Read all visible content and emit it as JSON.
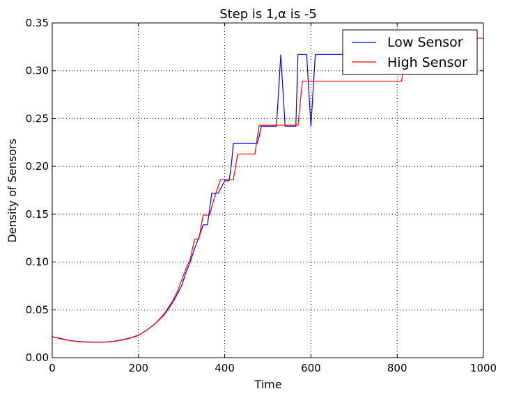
{
  "chart_data": {
    "type": "line",
    "title": "Step is 1,α is -5",
    "xlabel": "Time",
    "ylabel": "Density of Sensors",
    "xlim": [
      0,
      1000
    ],
    "ylim": [
      0,
      0.35
    ],
    "x_ticks": [
      0,
      200,
      400,
      600,
      800,
      1000
    ],
    "x_tick_labels": [
      "0",
      "200",
      "400",
      "600",
      "800",
      "1000"
    ],
    "y_ticks": [
      0,
      0.05,
      0.1,
      0.15,
      0.2,
      0.25,
      0.3,
      0.35
    ],
    "y_tick_labels": [
      "0.00",
      "0.05",
      "0.10",
      "0.15",
      "0.20",
      "0.25",
      "0.30",
      "0.35"
    ],
    "grid": true,
    "legend_position": "top-right",
    "series": [
      {
        "name": "Low Sensor",
        "color": "#0000ff",
        "points": [
          [
            0,
            0.022
          ],
          [
            20,
            0.02
          ],
          [
            40,
            0.018
          ],
          [
            60,
            0.017
          ],
          [
            80,
            0.0165
          ],
          [
            100,
            0.016
          ],
          [
            120,
            0.0163
          ],
          [
            140,
            0.017
          ],
          [
            160,
            0.0185
          ],
          [
            180,
            0.0205
          ],
          [
            200,
            0.0235
          ],
          [
            220,
            0.029
          ],
          [
            240,
            0.036
          ],
          [
            260,
            0.045
          ],
          [
            280,
            0.058
          ],
          [
            300,
            0.075
          ],
          [
            310,
            0.089
          ],
          [
            320,
            0.1
          ],
          [
            330,
            0.114
          ],
          [
            340,
            0.126
          ],
          [
            345,
            0.132
          ],
          [
            350,
            0.139
          ],
          [
            360,
            0.139
          ],
          [
            365,
            0.155
          ],
          [
            370,
            0.172
          ],
          [
            385,
            0.172
          ],
          [
            400,
            0.185
          ],
          [
            410,
            0.185
          ],
          [
            415,
            0.2
          ],
          [
            420,
            0.224
          ],
          [
            470,
            0.224
          ],
          [
            475,
            0.224
          ],
          [
            480,
            0.231
          ],
          [
            485,
            0.242
          ],
          [
            520,
            0.242
          ],
          [
            530,
            0.317
          ],
          [
            540,
            0.242
          ],
          [
            565,
            0.242
          ],
          [
            570,
            0.317
          ],
          [
            590,
            0.317
          ],
          [
            600,
            0.242
          ],
          [
            610,
            0.317
          ],
          [
            700,
            0.317
          ]
        ]
      },
      {
        "name": "High Sensor",
        "color": "#ff0000",
        "points": [
          [
            0,
            0.022
          ],
          [
            20,
            0.0195
          ],
          [
            40,
            0.0178
          ],
          [
            60,
            0.0168
          ],
          [
            80,
            0.0162
          ],
          [
            100,
            0.016
          ],
          [
            120,
            0.0162
          ],
          [
            140,
            0.0168
          ],
          [
            160,
            0.0182
          ],
          [
            180,
            0.0202
          ],
          [
            200,
            0.0232
          ],
          [
            220,
            0.029
          ],
          [
            240,
            0.036
          ],
          [
            260,
            0.046
          ],
          [
            280,
            0.06
          ],
          [
            290,
            0.069
          ],
          [
            300,
            0.081
          ],
          [
            310,
            0.093
          ],
          [
            320,
            0.103
          ],
          [
            330,
            0.124
          ],
          [
            340,
            0.124
          ],
          [
            350,
            0.149
          ],
          [
            365,
            0.149
          ],
          [
            375,
            0.166
          ],
          [
            390,
            0.186
          ],
          [
            420,
            0.186
          ],
          [
            430,
            0.213
          ],
          [
            470,
            0.213
          ],
          [
            480,
            0.243
          ],
          [
            570,
            0.243
          ],
          [
            580,
            0.289
          ],
          [
            810,
            0.289
          ],
          [
            815,
            0.303
          ],
          [
            820,
            0.31
          ],
          [
            850,
            0.315
          ],
          [
            880,
            0.325
          ],
          [
            910,
            0.331
          ],
          [
            930,
            0.334
          ],
          [
            1000,
            0.334
          ]
        ]
      }
    ]
  }
}
